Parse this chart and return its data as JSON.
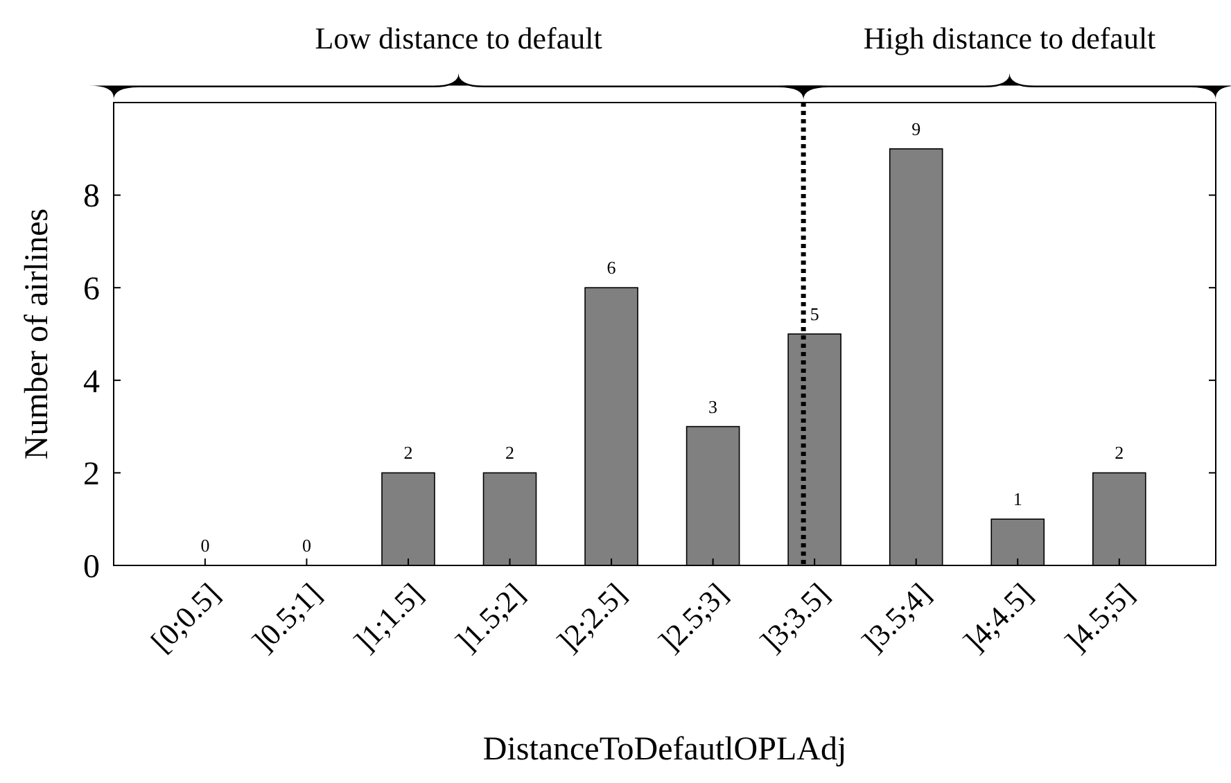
{
  "chart_data": {
    "type": "bar",
    "xlabel": "DistanceToDefautlOPLAdj",
    "ylabel": "Number of airlines",
    "categories": [
      "[0;0.5]",
      "]0.5;1]",
      "]1;1.5]",
      "]1.5;2]",
      "]2;2.5]",
      "]2.5;3]",
      "]3;3.5]",
      "]3.5;4]",
      "]4;4.5]",
      "]4.5;5]"
    ],
    "values": [
      0,
      0,
      2,
      2,
      6,
      3,
      5,
      9,
      1,
      2
    ],
    "color": "#808080",
    "ylim": [
      0,
      10
    ],
    "yticks": [
      0,
      2,
      4,
      6,
      8
    ],
    "data_labels": true,
    "ref_lines": [
      {
        "axis": "x",
        "value": "]3;3.5]",
        "line_style": "dotted",
        "color": "#000000"
      }
    ],
    "annotations": [
      "Low distance to default",
      "High distance to default"
    ]
  }
}
